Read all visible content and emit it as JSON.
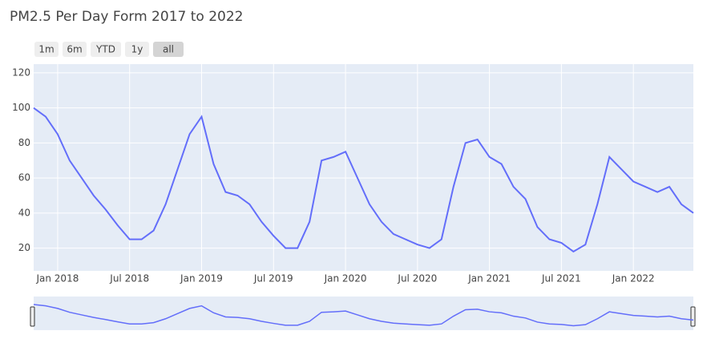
{
  "chart_data": {
    "type": "line",
    "title": "PM2.5 Per Day Form 2017 to 2022",
    "range_buttons": [
      "1m",
      "6m",
      "YTD",
      "1y",
      "all"
    ],
    "x": [
      "2017-11",
      "2017-12",
      "2018-01",
      "2018-02",
      "2018-03",
      "2018-04",
      "2018-05",
      "2018-06",
      "2018-07",
      "2018-08",
      "2018-09",
      "2018-10",
      "2018-11",
      "2018-12",
      "2019-01",
      "2019-02",
      "2019-03",
      "2019-04",
      "2019-05",
      "2019-06",
      "2019-07",
      "2019-08",
      "2019-09",
      "2019-10",
      "2019-11",
      "2019-12",
      "2020-01",
      "2020-02",
      "2020-03",
      "2020-04",
      "2020-05",
      "2020-06",
      "2020-07",
      "2020-08",
      "2020-09",
      "2020-10",
      "2020-11",
      "2020-12",
      "2021-01",
      "2021-02",
      "2021-03",
      "2021-04",
      "2021-05",
      "2021-06",
      "2021-07",
      "2021-08",
      "2021-09",
      "2021-10",
      "2021-11",
      "2021-12",
      "2022-01",
      "2022-02",
      "2022-03",
      "2022-04",
      "2022-05",
      "2022-06"
    ],
    "series": [
      {
        "color": "#636efa",
        "values": [
          100,
          95,
          85,
          70,
          60,
          50,
          42,
          33,
          25,
          25,
          30,
          45,
          65,
          85,
          95,
          68,
          52,
          50,
          45,
          35,
          27,
          20,
          20,
          35,
          70,
          72,
          75,
          60,
          45,
          35,
          28,
          25,
          22,
          20,
          25,
          55,
          80,
          82,
          72,
          68,
          55,
          48,
          32,
          25,
          23,
          18,
          22,
          45,
          72,
          65,
          58,
          55,
          52,
          55,
          45,
          40
        ]
      }
    ],
    "xlim": [
      "2017-11",
      "2022-06"
    ],
    "xticks": [
      {
        "value": "2018-01",
        "label": "Jan 2018"
      },
      {
        "value": "2018-07",
        "label": "Jul 2018"
      },
      {
        "value": "2019-01",
        "label": "Jan 2019"
      },
      {
        "value": "2019-07",
        "label": "Jul 2019"
      },
      {
        "value": "2020-01",
        "label": "Jan 2020"
      },
      {
        "value": "2020-07",
        "label": "Jul 2020"
      },
      {
        "value": "2021-01",
        "label": "Jan 2021"
      },
      {
        "value": "2021-07",
        "label": "Jul 2021"
      },
      {
        "value": "2022-01",
        "label": "Jan 2022"
      }
    ],
    "ylim": [
      7,
      125
    ],
    "yticks": [
      20,
      40,
      60,
      80,
      100,
      120
    ],
    "grid": true
  }
}
